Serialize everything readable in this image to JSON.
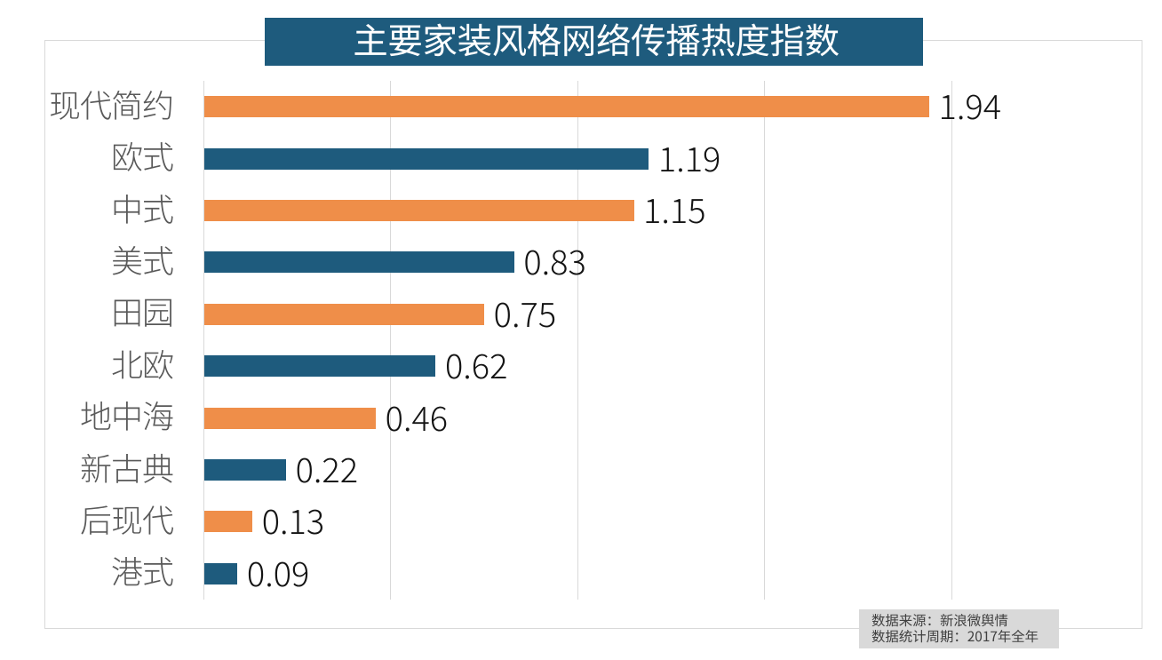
{
  "title_banner": {
    "text": "主要家装风格网络传播热度指数"
  },
  "chart_data": {
    "type": "bar",
    "orientation": "horizontal",
    "title": "主要家装风格网络传播热度指数",
    "categories": [
      "现代简约",
      "欧式",
      "中式",
      "美式",
      "田园",
      "北欧",
      "地中海",
      "新古典",
      "后现代",
      "港式"
    ],
    "values": [
      1.94,
      1.19,
      1.15,
      0.83,
      0.75,
      0.62,
      0.46,
      0.22,
      0.13,
      0.09
    ],
    "value_labels": [
      "1.94",
      "1.19",
      "1.15",
      "0.83",
      "0.75",
      "0.62",
      "0.46",
      "0.22",
      "0.13",
      "0.09"
    ],
    "xlim": [
      0,
      2
    ],
    "gridline_values": [
      0,
      0.5,
      1,
      1.5,
      2
    ],
    "grid": "vertical",
    "legend_position": "none",
    "bar_color_pattern": "alternating",
    "xlabel": "",
    "ylabel": ""
  },
  "colors": {
    "orange_bar": "#EF8E49",
    "teal_bar": "#1E5B7D",
    "banner_background": "#1E5B7D",
    "banner_text": "#FFFFFF",
    "gridline": "#D9D9D9",
    "frame_border": "#D9D9D9",
    "category_label": "#595959",
    "value_label": "#141414",
    "source_box_background": "#D9D9D9",
    "source_box_text": "#404040",
    "page_background": "#FFFFFF"
  },
  "source_box": {
    "line1": "数据来源：新浪微舆情",
    "line2": "数据统计周期：2017年全年"
  }
}
